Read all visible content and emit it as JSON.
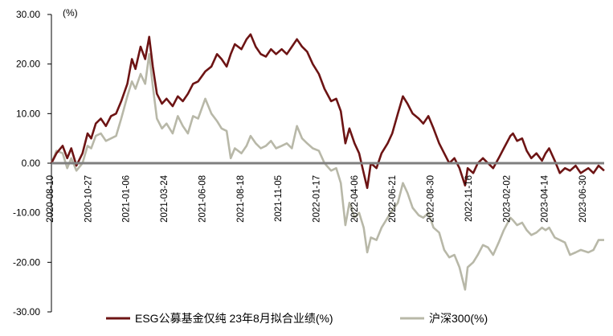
{
  "chart_data": {
    "type": "line",
    "unit_label": "(%)",
    "ylim": [
      -30,
      30
    ],
    "y_ticks": [
      "30.00",
      "20.00",
      "10.00",
      "0.00",
      "-10.00",
      "-20.00",
      "-30.00"
    ],
    "grid": false,
    "x_ticks": [
      "2020-08-10",
      "2020-10-27",
      "2021-01-06",
      "2021-03-24",
      "2021-06-08",
      "2021-08-18",
      "2021-11-05",
      "2022-01-17",
      "2022-04-06",
      "2022-06-21",
      "2022-08-30",
      "2022-11-16",
      "2023-02-02",
      "2023-04-14",
      "2023-06-30"
    ],
    "legend_position": "bottom",
    "series": [
      {
        "name": "ESG公募基金仅纯 23年8月拟合业绩(%)",
        "color": "#6d1414",
        "points": [
          [
            "2020-08-10",
            0
          ],
          [
            "2020-08-20",
            2
          ],
          [
            "2020-09-01",
            3.5
          ],
          [
            "2020-09-10",
            1
          ],
          [
            "2020-09-18",
            3
          ],
          [
            "2020-09-28",
            -0.5
          ],
          [
            "2020-10-10",
            2
          ],
          [
            "2020-10-20",
            6
          ],
          [
            "2020-10-27",
            5
          ],
          [
            "2020-11-05",
            8
          ],
          [
            "2020-11-15",
            9
          ],
          [
            "2020-11-25",
            7.5
          ],
          [
            "2020-12-05",
            9.5
          ],
          [
            "2020-12-15",
            10
          ],
          [
            "2020-12-25",
            12.5
          ],
          [
            "2021-01-06",
            16
          ],
          [
            "2021-01-15",
            21
          ],
          [
            "2021-01-22",
            19
          ],
          [
            "2021-02-01",
            23.5
          ],
          [
            "2021-02-10",
            21
          ],
          [
            "2021-02-18",
            25.5
          ],
          [
            "2021-02-25",
            19.5
          ],
          [
            "2021-03-05",
            14
          ],
          [
            "2021-03-15",
            12
          ],
          [
            "2021-03-24",
            13
          ],
          [
            "2021-04-05",
            11.5
          ],
          [
            "2021-04-15",
            13.5
          ],
          [
            "2021-04-25",
            12.5
          ],
          [
            "2021-05-05",
            14
          ],
          [
            "2021-05-15",
            16
          ],
          [
            "2021-05-25",
            16.5
          ],
          [
            "2021-06-08",
            18.5
          ],
          [
            "2021-06-20",
            19.5
          ],
          [
            "2021-07-01",
            22
          ],
          [
            "2021-07-10",
            21
          ],
          [
            "2021-07-20",
            19.5
          ],
          [
            "2021-07-28",
            22
          ],
          [
            "2021-08-05",
            24
          ],
          [
            "2021-08-18",
            23
          ],
          [
            "2021-08-28",
            25
          ],
          [
            "2021-09-05",
            26
          ],
          [
            "2021-09-15",
            23.5
          ],
          [
            "2021-09-25",
            22
          ],
          [
            "2021-10-05",
            21.5
          ],
          [
            "2021-10-15",
            23
          ],
          [
            "2021-10-25",
            22
          ],
          [
            "2021-11-05",
            23
          ],
          [
            "2021-11-15",
            22
          ],
          [
            "2021-11-25",
            23.5
          ],
          [
            "2021-12-05",
            25
          ],
          [
            "2021-12-15",
            23.5
          ],
          [
            "2021-12-25",
            22.5
          ],
          [
            "2022-01-05",
            20
          ],
          [
            "2022-01-17",
            18
          ],
          [
            "2022-01-28",
            15
          ],
          [
            "2022-02-10",
            12.5
          ],
          [
            "2022-02-20",
            13
          ],
          [
            "2022-03-01",
            10.5
          ],
          [
            "2022-03-10",
            4
          ],
          [
            "2022-03-18",
            7
          ],
          [
            "2022-03-28",
            4
          ],
          [
            "2022-04-06",
            2
          ],
          [
            "2022-04-15",
            -2
          ],
          [
            "2022-04-22",
            -5
          ],
          [
            "2022-04-29",
            0
          ],
          [
            "2022-05-10",
            -1
          ],
          [
            "2022-05-20",
            2
          ],
          [
            "2022-06-01",
            4
          ],
          [
            "2022-06-10",
            6
          ],
          [
            "2022-06-21",
            10
          ],
          [
            "2022-07-01",
            13.5
          ],
          [
            "2022-07-10",
            12
          ],
          [
            "2022-07-20",
            10
          ],
          [
            "2022-08-01",
            9
          ],
          [
            "2022-08-10",
            8
          ],
          [
            "2022-08-20",
            9.5
          ],
          [
            "2022-08-30",
            7
          ],
          [
            "2022-09-10",
            4
          ],
          [
            "2022-09-20",
            2
          ],
          [
            "2022-09-30",
            0
          ],
          [
            "2022-10-10",
            1
          ],
          [
            "2022-10-20",
            -1
          ],
          [
            "2022-10-31",
            -4.5
          ],
          [
            "2022-11-05",
            -1
          ],
          [
            "2022-11-16",
            -2
          ],
          [
            "2022-11-25",
            0
          ],
          [
            "2022-12-05",
            1
          ],
          [
            "2022-12-15",
            0
          ],
          [
            "2022-12-25",
            -1
          ],
          [
            "2023-01-05",
            1
          ],
          [
            "2023-01-15",
            3
          ],
          [
            "2023-01-28",
            5.5
          ],
          [
            "2023-02-02",
            6
          ],
          [
            "2023-02-10",
            4.5
          ],
          [
            "2023-02-20",
            5
          ],
          [
            "2023-03-01",
            2.5
          ],
          [
            "2023-03-10",
            1
          ],
          [
            "2023-03-20",
            2
          ],
          [
            "2023-03-31",
            0.5
          ],
          [
            "2023-04-07",
            2
          ],
          [
            "2023-04-14",
            3
          ],
          [
            "2023-04-25",
            0.5
          ],
          [
            "2023-05-05",
            -2
          ],
          [
            "2023-05-15",
            -1
          ],
          [
            "2023-05-25",
            -1.5
          ],
          [
            "2023-06-05",
            -0.5
          ],
          [
            "2023-06-15",
            -2
          ],
          [
            "2023-06-30",
            -1
          ],
          [
            "2023-07-10",
            -2
          ],
          [
            "2023-07-20",
            -0.5
          ],
          [
            "2023-07-31",
            -1.5
          ]
        ]
      },
      {
        "name": "沪深300(%)",
        "color": "#b8b8a8",
        "points": [
          [
            "2020-08-10",
            0
          ],
          [
            "2020-08-20",
            2.5
          ],
          [
            "2020-09-01",
            2
          ],
          [
            "2020-09-10",
            -1
          ],
          [
            "2020-09-18",
            1
          ],
          [
            "2020-09-28",
            -1.5
          ],
          [
            "2020-10-10",
            0
          ],
          [
            "2020-10-20",
            3.5
          ],
          [
            "2020-10-27",
            3
          ],
          [
            "2020-11-05",
            5.5
          ],
          [
            "2020-11-15",
            6
          ],
          [
            "2020-11-25",
            4.5
          ],
          [
            "2020-12-05",
            5
          ],
          [
            "2020-12-15",
            5.5
          ],
          [
            "2020-12-25",
            9
          ],
          [
            "2021-01-06",
            13.5
          ],
          [
            "2021-01-15",
            16.5
          ],
          [
            "2021-01-22",
            15
          ],
          [
            "2021-02-01",
            18
          ],
          [
            "2021-02-10",
            16
          ],
          [
            "2021-02-18",
            22
          ],
          [
            "2021-02-25",
            15.5
          ],
          [
            "2021-03-05",
            9
          ],
          [
            "2021-03-15",
            7
          ],
          [
            "2021-03-24",
            8
          ],
          [
            "2021-04-05",
            6
          ],
          [
            "2021-04-15",
            9.5
          ],
          [
            "2021-04-25",
            7.5
          ],
          [
            "2021-05-05",
            6
          ],
          [
            "2021-05-15",
            9.5
          ],
          [
            "2021-05-25",
            9
          ],
          [
            "2021-06-08",
            13
          ],
          [
            "2021-06-20",
            10
          ],
          [
            "2021-07-01",
            8.5
          ],
          [
            "2021-07-10",
            7
          ],
          [
            "2021-07-20",
            6.5
          ],
          [
            "2021-07-28",
            1
          ],
          [
            "2021-08-05",
            3
          ],
          [
            "2021-08-18",
            2
          ],
          [
            "2021-08-28",
            3.5
          ],
          [
            "2021-09-05",
            5.5
          ],
          [
            "2021-09-15",
            4
          ],
          [
            "2021-09-25",
            3
          ],
          [
            "2021-10-05",
            3.5
          ],
          [
            "2021-10-15",
            4.5
          ],
          [
            "2021-10-25",
            3
          ],
          [
            "2021-11-05",
            3.5
          ],
          [
            "2021-11-15",
            4
          ],
          [
            "2021-11-25",
            3
          ],
          [
            "2021-12-05",
            7.5
          ],
          [
            "2021-12-15",
            5
          ],
          [
            "2021-12-25",
            4
          ],
          [
            "2022-01-05",
            3
          ],
          [
            "2022-01-17",
            2.5
          ],
          [
            "2022-01-28",
            0
          ],
          [
            "2022-02-10",
            -1.5
          ],
          [
            "2022-02-20",
            -1
          ],
          [
            "2022-03-01",
            -4
          ],
          [
            "2022-03-10",
            -12.5
          ],
          [
            "2022-03-18",
            -8
          ],
          [
            "2022-03-28",
            -11
          ],
          [
            "2022-04-06",
            -10
          ],
          [
            "2022-04-15",
            -13
          ],
          [
            "2022-04-22",
            -18
          ],
          [
            "2022-04-29",
            -15
          ],
          [
            "2022-05-10",
            -15.5
          ],
          [
            "2022-05-20",
            -13
          ],
          [
            "2022-06-01",
            -11
          ],
          [
            "2022-06-10",
            -9.5
          ],
          [
            "2022-06-21",
            -8
          ],
          [
            "2022-07-01",
            -4
          ],
          [
            "2022-07-10",
            -6
          ],
          [
            "2022-07-20",
            -9
          ],
          [
            "2022-08-01",
            -10.5
          ],
          [
            "2022-08-10",
            -11
          ],
          [
            "2022-08-20",
            -10
          ],
          [
            "2022-08-30",
            -13
          ],
          [
            "2022-09-10",
            -14
          ],
          [
            "2022-09-20",
            -17.5
          ],
          [
            "2022-09-30",
            -19
          ],
          [
            "2022-10-10",
            -18.5
          ],
          [
            "2022-10-20",
            -21
          ],
          [
            "2022-10-31",
            -25.5
          ],
          [
            "2022-11-05",
            -21
          ],
          [
            "2022-11-16",
            -20
          ],
          [
            "2022-11-25",
            -18.5
          ],
          [
            "2022-12-05",
            -16.5
          ],
          [
            "2022-12-15",
            -17
          ],
          [
            "2022-12-25",
            -18.5
          ],
          [
            "2023-01-05",
            -16
          ],
          [
            "2023-01-15",
            -13.5
          ],
          [
            "2023-01-28",
            -11
          ],
          [
            "2023-02-02",
            -11.5
          ],
          [
            "2023-02-10",
            -12.5
          ],
          [
            "2023-02-20",
            -12
          ],
          [
            "2023-03-01",
            -13.5
          ],
          [
            "2023-03-10",
            -14.5
          ],
          [
            "2023-03-20",
            -14
          ],
          [
            "2023-03-31",
            -13
          ],
          [
            "2023-04-07",
            -13.5
          ],
          [
            "2023-04-14",
            -13
          ],
          [
            "2023-04-25",
            -15
          ],
          [
            "2023-05-05",
            -15.5
          ],
          [
            "2023-05-15",
            -16
          ],
          [
            "2023-05-25",
            -18.5
          ],
          [
            "2023-06-05",
            -18
          ],
          [
            "2023-06-15",
            -17.5
          ],
          [
            "2023-06-30",
            -18
          ],
          [
            "2023-07-10",
            -17.5
          ],
          [
            "2023-07-20",
            -15.5
          ],
          [
            "2023-07-31",
            -15.5
          ]
        ]
      }
    ]
  }
}
